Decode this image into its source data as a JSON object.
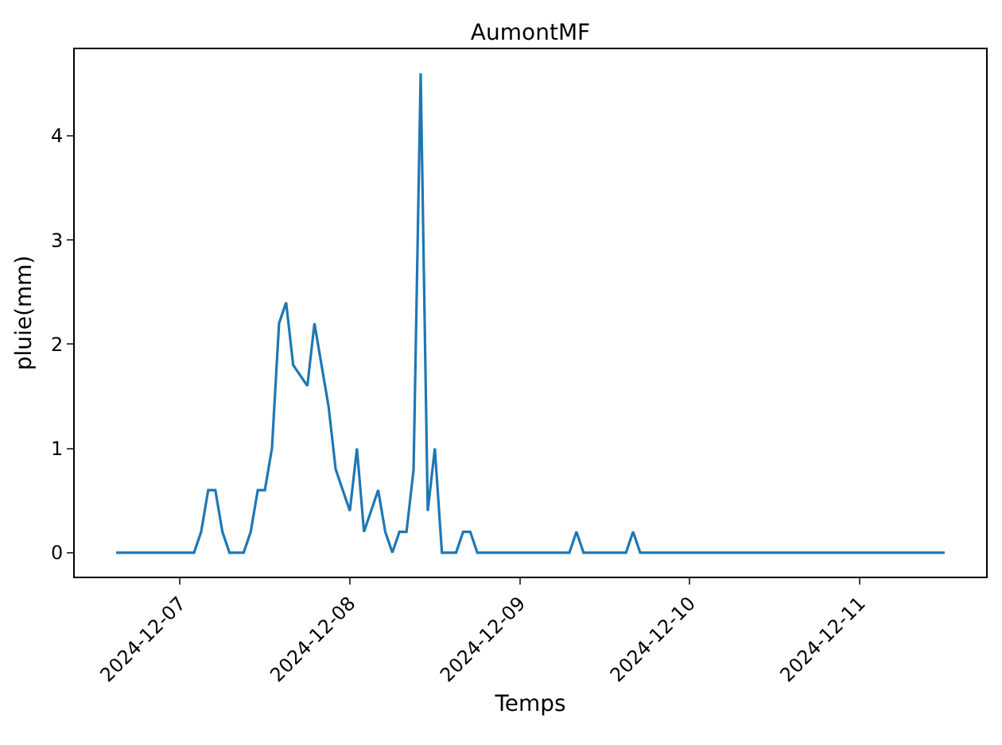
{
  "chart_data": {
    "type": "line",
    "title": "AumontMF",
    "xlabel": "Temps",
    "ylabel": "pluie(mm)",
    "x": [
      "2024-12-06T15:00",
      "2024-12-07T02:00",
      "2024-12-07T03:00",
      "2024-12-07T04:00",
      "2024-12-07T05:00",
      "2024-12-07T06:00",
      "2024-12-07T07:00",
      "2024-12-07T09:00",
      "2024-12-07T10:00",
      "2024-12-07T11:00",
      "2024-12-07T12:00",
      "2024-12-07T13:00",
      "2024-12-07T14:00",
      "2024-12-07T15:00",
      "2024-12-07T16:00",
      "2024-12-07T18:00",
      "2024-12-07T19:00",
      "2024-12-07T21:00",
      "2024-12-07T22:00",
      "2024-12-08T00:00",
      "2024-12-08T01:00",
      "2024-12-08T02:00",
      "2024-12-08T04:00",
      "2024-12-08T05:00",
      "2024-12-08T06:00",
      "2024-12-08T07:00",
      "2024-12-08T08:00",
      "2024-12-08T09:00",
      "2024-12-08T10:00",
      "2024-12-08T11:00",
      "2024-12-08T12:00",
      "2024-12-08T13:00",
      "2024-12-08T15:00",
      "2024-12-08T16:00",
      "2024-12-08T17:00",
      "2024-12-08T18:00",
      "2024-12-09T07:00",
      "2024-12-09T08:00",
      "2024-12-09T09:00",
      "2024-12-09T15:00",
      "2024-12-09T16:00",
      "2024-12-09T17:00",
      "2024-12-11T12:00"
    ],
    "series": [
      {
        "color": "#1f77b4",
        "values": [
          0,
          0,
          0.2,
          0.6,
          0.6,
          0.2,
          0,
          0,
          0.2,
          0.6,
          0.6,
          1.0,
          2.2,
          2.4,
          1.8,
          1.6,
          2.2,
          1.4,
          0.8,
          0.4,
          1.0,
          0.2,
          0.6,
          0.2,
          0,
          0.2,
          0.2,
          0.8,
          4.6,
          0.4,
          1.0,
          0,
          0,
          0.2,
          0.2,
          0,
          0,
          0.2,
          0,
          0,
          0.2,
          0,
          0
        ]
      }
    ],
    "xlim": [
      "2024-12-06T09:09",
      "2024-12-11T17:51"
    ],
    "xticks": [
      "2024-12-07",
      "2024-12-08",
      "2024-12-09",
      "2024-12-10",
      "2024-12-11"
    ],
    "ylim": [
      -0.23,
      4.83
    ],
    "yticks": [
      0,
      1,
      2,
      3,
      4
    ],
    "grid": false,
    "marker": "none",
    "line_style": "solid"
  }
}
